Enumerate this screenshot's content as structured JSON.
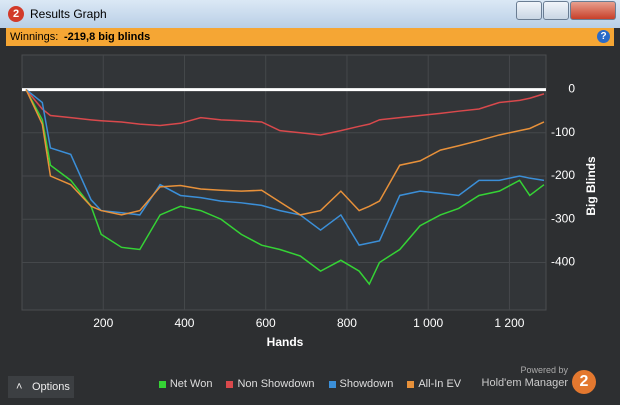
{
  "window": {
    "logo": "2",
    "title": "Results Graph",
    "winnings_label": "Winnings:",
    "winnings_value": "-219,8 big blinds",
    "help": "?",
    "options": "Options",
    "powered_by": "Powered by",
    "brand": "Hold'em Manager",
    "brand_logo": "2"
  },
  "chart_data": {
    "type": "line",
    "x_label": "Hands",
    "y_label": "Big Blinds",
    "x": [
      10,
      50,
      70,
      120,
      170,
      195,
      245,
      290,
      340,
      390,
      440,
      490,
      540,
      590,
      635,
      685,
      735,
      785,
      830,
      855,
      880,
      930,
      980,
      1030,
      1075,
      1125,
      1175,
      1225,
      1250,
      1285
    ],
    "series": [
      {
        "name": "Net Won",
        "color": "#35d335",
        "values": [
          0,
          -70,
          -175,
          -210,
          -270,
          -335,
          -365,
          -370,
          -290,
          -270,
          -280,
          -300,
          -335,
          -360,
          -370,
          -385,
          -420,
          -395,
          -420,
          -450,
          -400,
          -370,
          -315,
          -290,
          -275,
          -245,
          -235,
          -210,
          -245,
          -220
        ]
      },
      {
        "name": "Non Showdown",
        "color": "#d9494c",
        "values": [
          0,
          -45,
          -60,
          -65,
          -70,
          -72,
          -75,
          -80,
          -83,
          -78,
          -65,
          -70,
          -72,
          -75,
          -95,
          -100,
          -105,
          -95,
          -85,
          -80,
          -70,
          -65,
          -60,
          -55,
          -50,
          -45,
          -30,
          -25,
          -20,
          -10
        ]
      },
      {
        "name": "Showdown",
        "color": "#3b8fd8",
        "values": [
          0,
          -30,
          -135,
          -150,
          -255,
          -280,
          -285,
          -290,
          -220,
          -245,
          -250,
          -258,
          -262,
          -268,
          -280,
          -290,
          -325,
          -290,
          -360,
          -355,
          -350,
          -245,
          -235,
          -240,
          -245,
          -210,
          -210,
          -200,
          -205,
          -210
        ]
      },
      {
        "name": "All-In EV",
        "color": "#e8913a",
        "values": [
          0,
          -80,
          -200,
          -220,
          -270,
          -280,
          -290,
          -280,
          -225,
          -222,
          -230,
          -233,
          -235,
          -233,
          -260,
          -290,
          -280,
          -235,
          -280,
          -270,
          -258,
          -175,
          -165,
          -140,
          -130,
          -118,
          -105,
          -95,
          -90,
          -75
        ]
      }
    ],
    "xlim": [
      0,
      1290
    ],
    "ylim": [
      -510,
      80
    ],
    "xticks": [
      200,
      400,
      600,
      800,
      {
        "value": 1000,
        "label": "1 000"
      },
      {
        "value": 1200,
        "label": "1 200"
      }
    ],
    "yticks": [
      0,
      -100,
      -200,
      -300,
      -400
    ],
    "grid": true
  }
}
